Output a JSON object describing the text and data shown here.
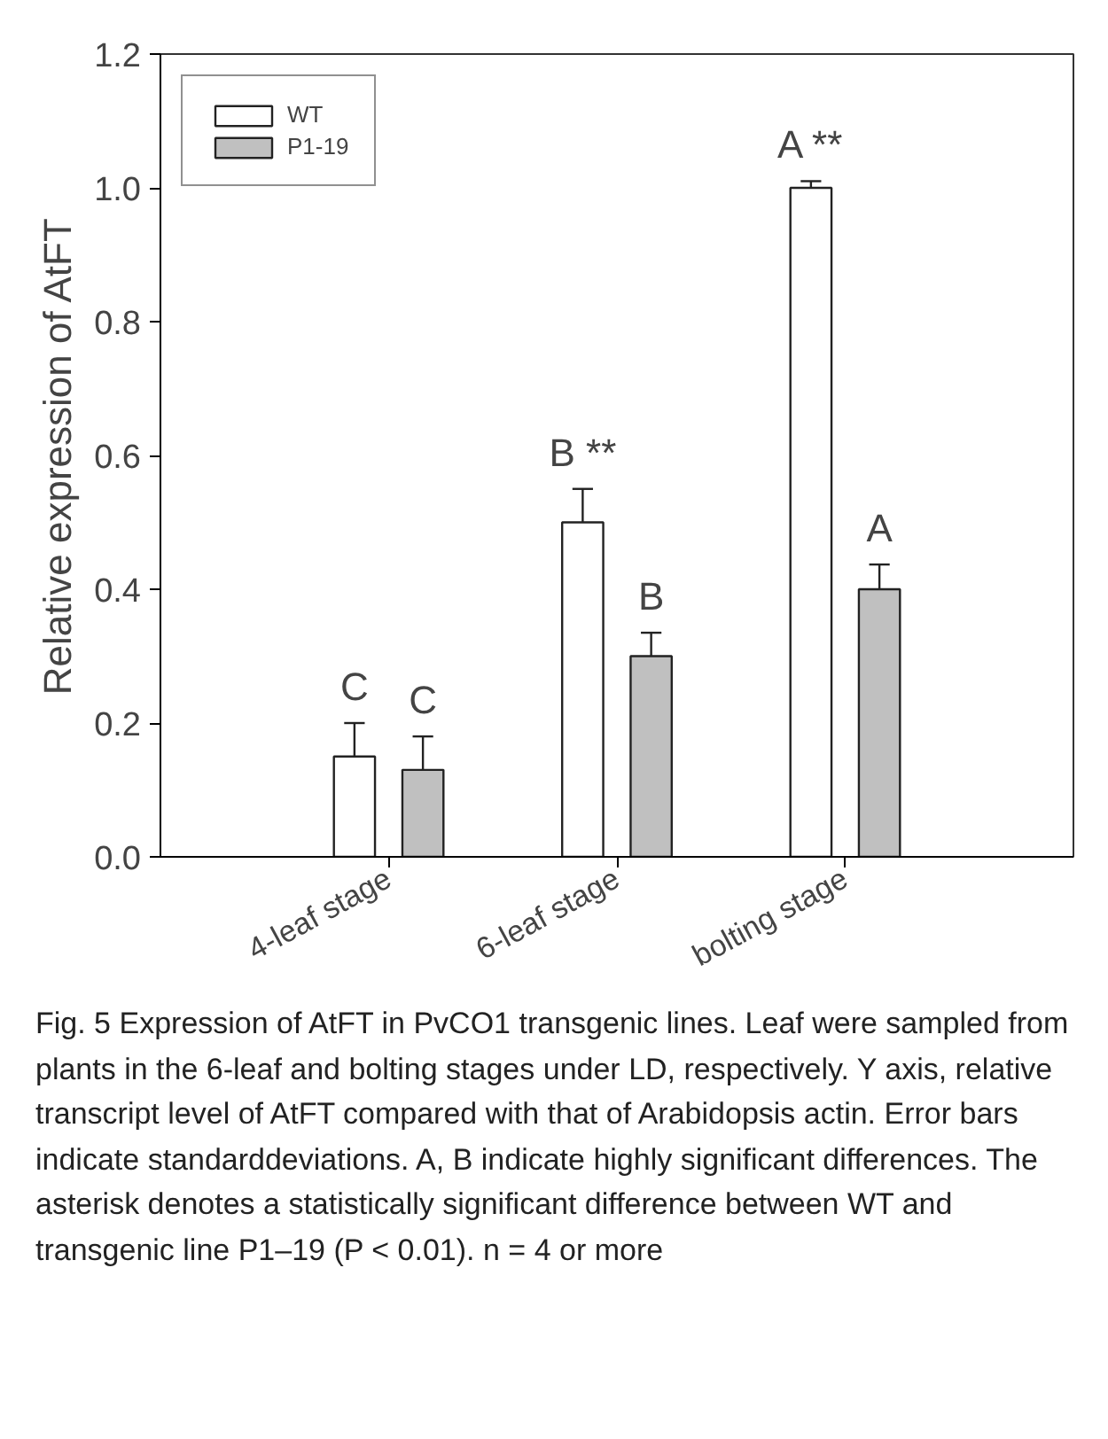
{
  "chart_data": {
    "type": "bar",
    "categories": [
      "4-leaf stage",
      "6-leaf stage",
      "bolting stage"
    ],
    "ylabel": "Relative expression of AtFT",
    "ylim": [
      0,
      1.2
    ],
    "yticks": [
      {
        "value": 0,
        "label": "0.0"
      },
      {
        "value": 0.2,
        "label": "0.2"
      },
      {
        "value": 0.4,
        "label": "0.4"
      },
      {
        "value": 0.6,
        "label": "0.6"
      },
      {
        "value": 0.8,
        "label": "0.8"
      },
      {
        "value": 1.0,
        "label": "1.0"
      },
      {
        "value": 1.2,
        "label": "1.2"
      }
    ],
    "series": [
      {
        "name": "WT",
        "color": "#ffffff",
        "values": [
          0.15,
          0.5,
          1.0
        ],
        "errors": [
          [
            0.15,
            0.2
          ],
          [
            0.5,
            0.55
          ],
          [
            1.0,
            1.01
          ]
        ],
        "value_labels": [
          "C",
          "B **",
          "A **"
        ]
      },
      {
        "name": "P1-19",
        "color": "#c0c0c0",
        "values": [
          0.13,
          0.3,
          0.4
        ],
        "errors": [
          [
            0.13,
            0.18
          ],
          [
            0.3,
            0.335
          ],
          [
            0.4,
            0.437
          ]
        ],
        "value_labels": [
          "C",
          "B",
          "A"
        ]
      }
    ],
    "annotations": [
      "Fig. 5 Expression of AtFT in PvCO1 transgenic lines. Leaf were sampled from plants in the 6-leaf and bolting stages under LD, respectively. Y axis, relative transcript level of AtFT compared with that of Arabidopsis actin. Error bars indicate standarddeviations. A, B indicate highly significant differences. The asterisk denotes a statistically significant difference between WT and transgenic line P1–19 (P < 0.01). n = 4 or more"
    ],
    "legend": "top left",
    "grid": false
  }
}
